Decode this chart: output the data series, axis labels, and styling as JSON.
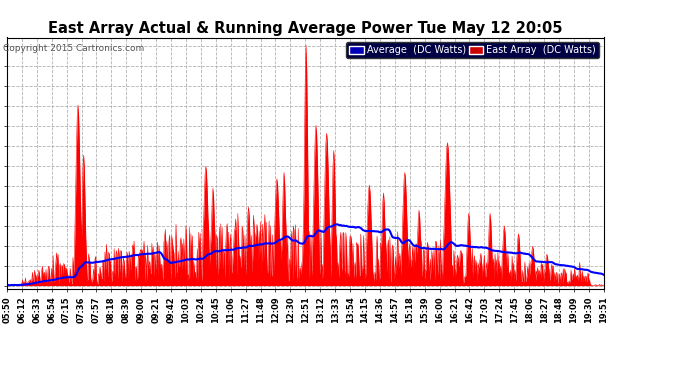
{
  "title": "East Array Actual & Running Average Power Tue May 12 20:05",
  "copyright": "Copyright 2015 Cartronics.com",
  "legend_labels": [
    "Average  (DC Watts)",
    "East Array  (DC Watts)"
  ],
  "legend_avg_bg": "#0000bb",
  "legend_east_bg": "#cc0000",
  "yticks": [
    0.0,
    127.0,
    254.0,
    381.0,
    508.0,
    635.0,
    762.0,
    889.0,
    1016.0,
    1143.0,
    1269.9,
    1396.9,
    1523.9
  ],
  "ymax": 1580,
  "ymin": -20,
  "bg_color": "#ffffff",
  "plot_bg": "#ffffff",
  "grid_color": "#aaaaaa",
  "title_color": "#000000",
  "tick_color": "#000000",
  "east_array_color": "#ff0000",
  "average_color": "#0000ff",
  "xtick_labels": [
    "05:50",
    "06:12",
    "06:33",
    "06:54",
    "07:15",
    "07:36",
    "07:57",
    "08:18",
    "08:39",
    "09:00",
    "09:21",
    "09:42",
    "10:03",
    "10:24",
    "10:45",
    "11:06",
    "11:27",
    "11:48",
    "12:09",
    "12:30",
    "12:51",
    "13:12",
    "13:33",
    "13:54",
    "14:15",
    "14:36",
    "14:57",
    "15:18",
    "15:39",
    "16:00",
    "16:21",
    "16:42",
    "17:03",
    "17:24",
    "17:45",
    "18:06",
    "18:27",
    "18:48",
    "19:09",
    "19:30",
    "19:51"
  ]
}
